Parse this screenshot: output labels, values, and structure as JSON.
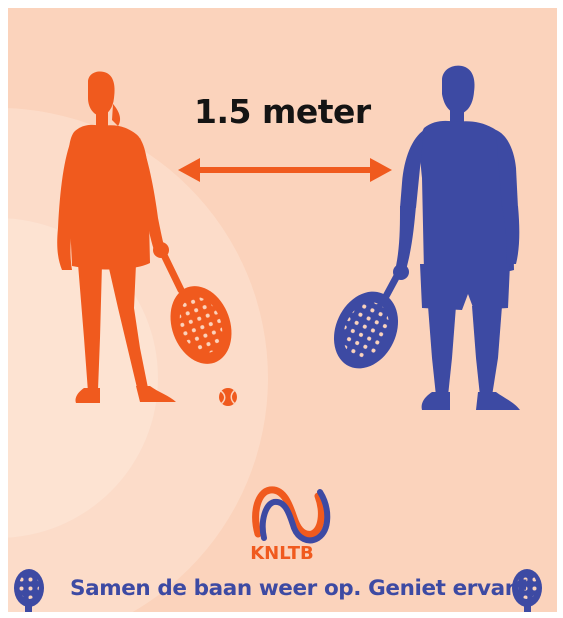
{
  "poster": {
    "distance_label": "1.5 meter",
    "brand_name": "KNLTB",
    "tagline": "Samen de baan weer op. Geniet ervan!"
  },
  "colors": {
    "background": "#fbd3bc",
    "orange_player": "#f05a1e",
    "blue_player": "#3d4aa3",
    "text_dark": "#141414"
  },
  "icons": {
    "left_player": "woman-with-padel-racket-silhouette",
    "right_player": "man-with-padel-racket-silhouette",
    "arrow": "double-headed-arrow",
    "ball": "tennis-ball",
    "logo": "knltb-wave-logo",
    "corner_rackets": "padel-racket-icon"
  }
}
